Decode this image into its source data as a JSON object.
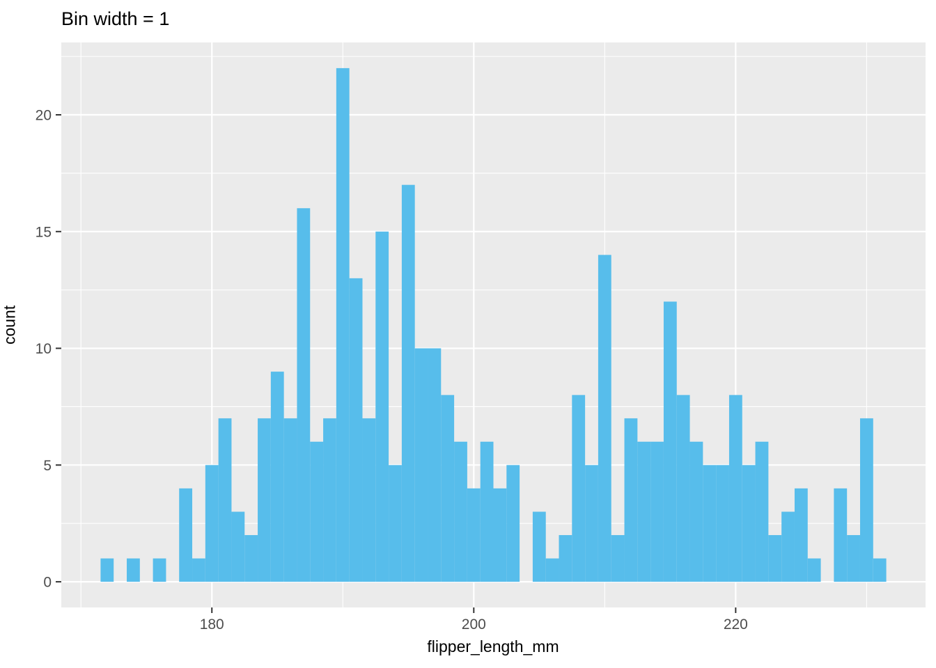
{
  "title": "Bin width = 1",
  "colors": {
    "background": "#FFFFFF",
    "panel": "#EBEBEB",
    "grid": "#FFFFFF",
    "bar": "#57BDEB",
    "tick_label_text": "#4D4D4D",
    "tick_mark": "#333333",
    "title_text": "#000000"
  },
  "chart_data": {
    "type": "bar",
    "subtype": "histogram",
    "title": "Bin width = 1",
    "xlabel": "flipper_length_mm",
    "ylabel": "count",
    "bin_width": 1,
    "x": [
      172,
      173,
      174,
      175,
      176,
      177,
      178,
      179,
      180,
      181,
      182,
      183,
      184,
      185,
      186,
      187,
      188,
      189,
      190,
      191,
      192,
      193,
      194,
      195,
      196,
      197,
      198,
      199,
      200,
      201,
      202,
      203,
      204,
      205,
      206,
      207,
      208,
      209,
      210,
      211,
      212,
      213,
      214,
      215,
      216,
      217,
      218,
      219,
      220,
      221,
      222,
      223,
      224,
      225,
      226,
      227,
      228,
      229,
      230,
      231
    ],
    "values": [
      1,
      0,
      1,
      0,
      1,
      0,
      4,
      1,
      5,
      7,
      3,
      2,
      7,
      9,
      7,
      16,
      6,
      7,
      22,
      13,
      7,
      15,
      5,
      17,
      10,
      10,
      8,
      6,
      4,
      6,
      4,
      5,
      0,
      3,
      1,
      2,
      8,
      5,
      14,
      2,
      7,
      6,
      6,
      12,
      8,
      6,
      5,
      5,
      8,
      5,
      6,
      2,
      3,
      4,
      1,
      0,
      4,
      2,
      7,
      1
    ],
    "x_ticks": [
      180,
      200,
      220
    ],
    "y_ticks": [
      0,
      5,
      10,
      15,
      20
    ],
    "x_minor_gridlines": [
      170,
      190,
      210,
      230
    ],
    "y_minor_gridlines": [
      2.5,
      7.5,
      12.5,
      17.5,
      22.5
    ],
    "xlim": [
      168.5,
      234.5
    ],
    "ylim": [
      -1.1,
      23.1
    ],
    "grid": true,
    "legend": "none"
  }
}
